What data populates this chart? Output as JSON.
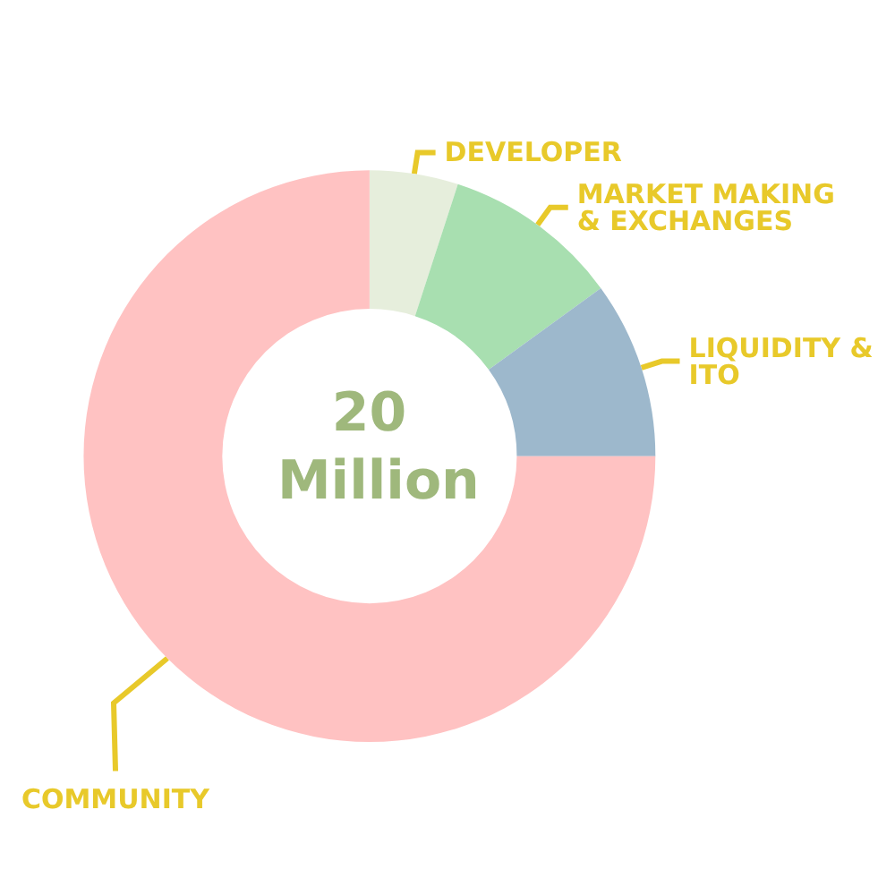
{
  "chart_data": {
    "type": "donut",
    "title": "20 Million",
    "categories": [
      "DEVELOPER",
      "MARKET MAKING & EXCHANGES",
      "LIQUIDITY & ITO",
      "COMMUNITY"
    ],
    "values": [
      5,
      10,
      10,
      75
    ],
    "colors": [
      "#e6eedc",
      "#a8dfb0",
      "#9db8cc",
      "#ffc2c2"
    ],
    "legend": false
  }
}
